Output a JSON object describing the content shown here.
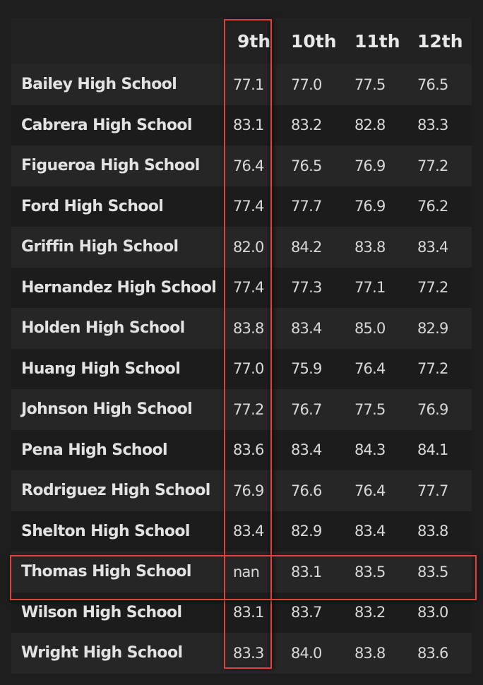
{
  "table": {
    "headers": [
      "",
      "9th",
      "10th",
      "11th",
      "12th"
    ],
    "rows": [
      {
        "school": "Bailey High School",
        "values": [
          "77.1",
          "77.0",
          "77.5",
          "76.5"
        ]
      },
      {
        "school": "Cabrera High School",
        "values": [
          "83.1",
          "83.2",
          "82.8",
          "83.3"
        ]
      },
      {
        "school": "Figueroa High School",
        "values": [
          "76.4",
          "76.5",
          "76.9",
          "77.2"
        ]
      },
      {
        "school": "Ford High School",
        "values": [
          "77.4",
          "77.7",
          "76.9",
          "76.2"
        ]
      },
      {
        "school": "Griffin High School",
        "values": [
          "82.0",
          "84.2",
          "83.8",
          "83.4"
        ]
      },
      {
        "school": "Hernandez High School",
        "values": [
          "77.4",
          "77.3",
          "77.1",
          "77.2"
        ]
      },
      {
        "school": "Holden High School",
        "values": [
          "83.8",
          "83.4",
          "85.0",
          "82.9"
        ]
      },
      {
        "school": "Huang High School",
        "values": [
          "77.0",
          "75.9",
          "76.4",
          "77.2"
        ]
      },
      {
        "school": "Johnson High School",
        "values": [
          "77.2",
          "76.7",
          "77.5",
          "76.9"
        ]
      },
      {
        "school": "Pena High School",
        "values": [
          "83.6",
          "83.4",
          "84.3",
          "84.1"
        ]
      },
      {
        "school": "Rodriguez High School",
        "values": [
          "76.9",
          "76.6",
          "76.4",
          "77.7"
        ]
      },
      {
        "school": "Shelton High School",
        "values": [
          "83.4",
          "82.9",
          "83.4",
          "83.8"
        ]
      },
      {
        "school": "Thomas High School",
        "values": [
          "nan",
          "83.1",
          "83.5",
          "83.5"
        ]
      },
      {
        "school": "Wilson High School",
        "values": [
          "83.1",
          "83.7",
          "83.2",
          "83.0"
        ]
      },
      {
        "school": "Wright High School",
        "values": [
          "83.3",
          "84.0",
          "83.8",
          "83.6"
        ]
      }
    ]
  },
  "highlights": {
    "column": "9th",
    "row": "Thomas High School",
    "color": "#e0413b"
  },
  "colors": {
    "background": "#1e1e1e",
    "row_odd": "#262626",
    "row_even": "#1c1c1c",
    "text": "#e2e2e2"
  }
}
